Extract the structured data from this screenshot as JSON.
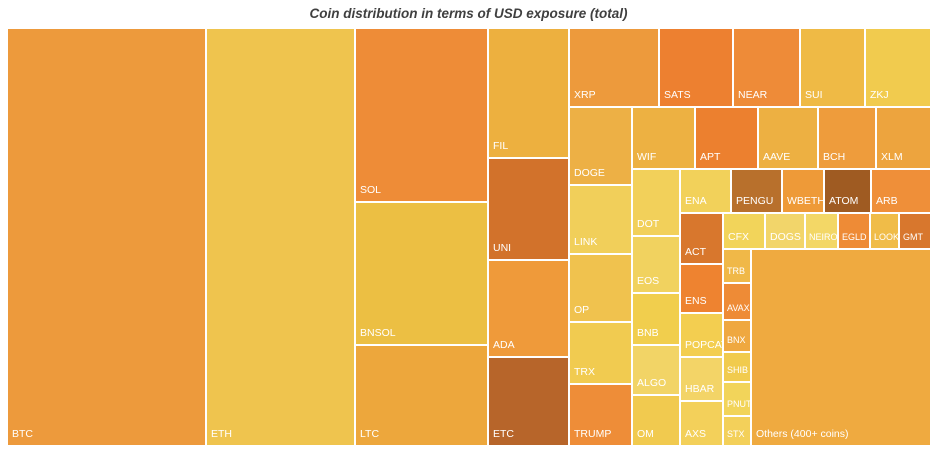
{
  "chart_data": {
    "type": "treemap",
    "title": "Coin distribution in terms of USD exposure (total)",
    "tiles": [
      {
        "name": "BTC",
        "value": 86,
        "color": "#ED9A3C"
      },
      {
        "name": "ETH",
        "value": 68,
        "color": "#EFC44E"
      },
      {
        "name": "SOL",
        "value": 30,
        "color": "#EE8C37"
      },
      {
        "name": "BNSOL",
        "value": 24.5,
        "color": "#ECBF43"
      },
      {
        "name": "LTC",
        "value": 21,
        "color": "#EDA73C"
      },
      {
        "name": "FIL",
        "value": 10.2,
        "color": "#EDB03F"
      },
      {
        "name": "UNI",
        "value": 8.4,
        "color": "#D2722B"
      },
      {
        "name": "ADA",
        "value": 7.7,
        "color": "#EF9A3A"
      },
      {
        "name": "ETC",
        "value": 7,
        "color": "#B7652A"
      },
      {
        "name": "XRP",
        "value": 3.6,
        "color": "#ED9A3C"
      },
      {
        "name": "SATS",
        "value": 2.9,
        "color": "#ED8030"
      },
      {
        "name": "NEAR",
        "value": 2.6,
        "color": "#EE8B38"
      },
      {
        "name": "SUI",
        "value": 2.5,
        "color": "#EFBA45"
      },
      {
        "name": "ZKJ",
        "value": 2.4,
        "color": "#F1CB4E"
      },
      {
        "name": "DOGE",
        "value": 1.8,
        "color": "#EDB045"
      },
      {
        "name": "LINK",
        "value": 2.4,
        "color": "#F1CF5A"
      },
      {
        "name": "OP",
        "value": 1.9,
        "color": "#F0C24E"
      },
      {
        "name": "TRX",
        "value": 1.8,
        "color": "#F1CB50"
      },
      {
        "name": "TRUMP",
        "value": 1.5,
        "color": "#EE8D38"
      },
      {
        "name": "WIF",
        "value": 1.3,
        "color": "#EDB142"
      },
      {
        "name": "APT",
        "value": 1.2,
        "color": "#EC802F"
      },
      {
        "name": "AAVE",
        "value": 1.2,
        "color": "#EDB042"
      },
      {
        "name": "BCH",
        "value": 1.1,
        "color": "#EE9C3C"
      },
      {
        "name": "XLM",
        "value": 1.1,
        "color": "#EDA43E"
      },
      {
        "name": "DOT",
        "value": 1.2,
        "color": "#F2D05A"
      },
      {
        "name": "EOS",
        "value": 1.0,
        "color": "#F1D25F"
      },
      {
        "name": "BNB",
        "value": 1.0,
        "color": "#F1CE4D"
      },
      {
        "name": "ALGO",
        "value": 1.0,
        "color": "#F2D466"
      },
      {
        "name": "OM",
        "value": 0.9,
        "color": "#F1CA4F"
      },
      {
        "name": "ENA",
        "value": 0.6,
        "color": "#F2D15A"
      },
      {
        "name": "PENGU",
        "value": 0.5,
        "color": "#B8702C"
      },
      {
        "name": "WBETH",
        "value": 0.5,
        "color": "#EE9A38"
      },
      {
        "name": "ATOM",
        "value": 0.5,
        "color": "#9F5B22"
      },
      {
        "name": "ARB",
        "value": 0.4,
        "color": "#EF8F39"
      },
      {
        "name": "ACT",
        "value": 0.5,
        "color": "#D8772D"
      },
      {
        "name": "ENS",
        "value": 0.6,
        "color": "#EE8330"
      },
      {
        "name": "POPCAT",
        "value": 0.5,
        "color": "#F3CE50"
      },
      {
        "name": "HBAR",
        "value": 0.5,
        "color": "#F3D467"
      },
      {
        "name": "AXS",
        "value": 0.5,
        "color": "#F3D05A"
      },
      {
        "name": "CFX",
        "value": 0.3,
        "color": "#F2D45A"
      },
      {
        "name": "DOGS",
        "value": 0.3,
        "color": "#F2D56A"
      },
      {
        "name": "NEIRO",
        "value": 0.2,
        "color": "#F3D766"
      },
      {
        "name": "EGLD",
        "value": 0.2,
        "color": "#EE8B36"
      },
      {
        "name": "LOOKS",
        "value": 0.2,
        "color": "#F0BC48"
      },
      {
        "name": "GMT",
        "value": 0.2,
        "color": "#D8772D"
      },
      {
        "name": "TRB",
        "value": 0.2,
        "color": "#F0B848"
      },
      {
        "name": "AVAX",
        "value": 0.2,
        "color": "#EE8B36"
      },
      {
        "name": "BNX",
        "value": 0.2,
        "color": "#EFA840"
      },
      {
        "name": "SHIB",
        "value": 0.15,
        "color": "#F1CB4E"
      },
      {
        "name": "PNUT",
        "value": 0.1,
        "color": "#F2D45A"
      },
      {
        "name": "STX",
        "value": 0.15,
        "color": "#F3D05A"
      },
      {
        "name": "Others (400+ coins)",
        "value": 18,
        "color": "#EFAA40"
      }
    ]
  }
}
